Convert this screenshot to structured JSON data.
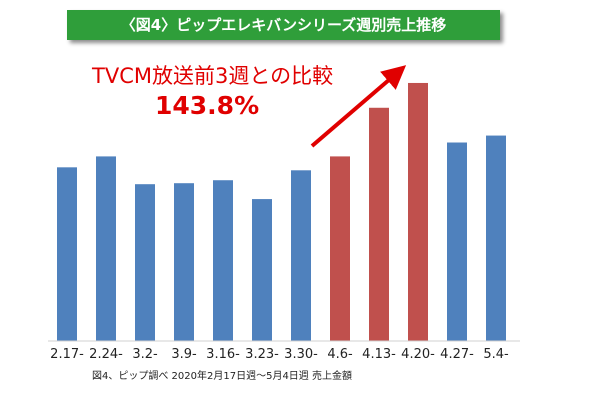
{
  "title": "〈図4〉ピップエレキバンシリーズ週別売上推移",
  "annotation": {
    "label": "TVCM放送前3週との比較",
    "value": "143.8%"
  },
  "footnote": "図4、ピップ調べ 2020年2月17日週〜5月4日週 売上金額",
  "colors": {
    "blue": "#4f81bd",
    "red": "#c0504d",
    "banner": "#2f9e3a",
    "accent": "#e00000"
  },
  "chart_data": {
    "type": "bar",
    "categories": [
      "2.17-",
      "2.24-",
      "3.2-",
      "3.9-",
      "3.16-",
      "3.23-",
      "3.30-",
      "4.6-",
      "4.13-",
      "4.20-",
      "4.27-",
      "5.4-"
    ],
    "values": [
      175,
      186,
      158,
      159,
      162,
      143,
      172,
      186,
      235,
      260,
      200,
      207
    ],
    "highlight": [
      false,
      false,
      false,
      false,
      false,
      false,
      false,
      true,
      true,
      true,
      false,
      false
    ],
    "ylim": [
      0,
      265
    ],
    "grid": false,
    "legend": "none"
  }
}
